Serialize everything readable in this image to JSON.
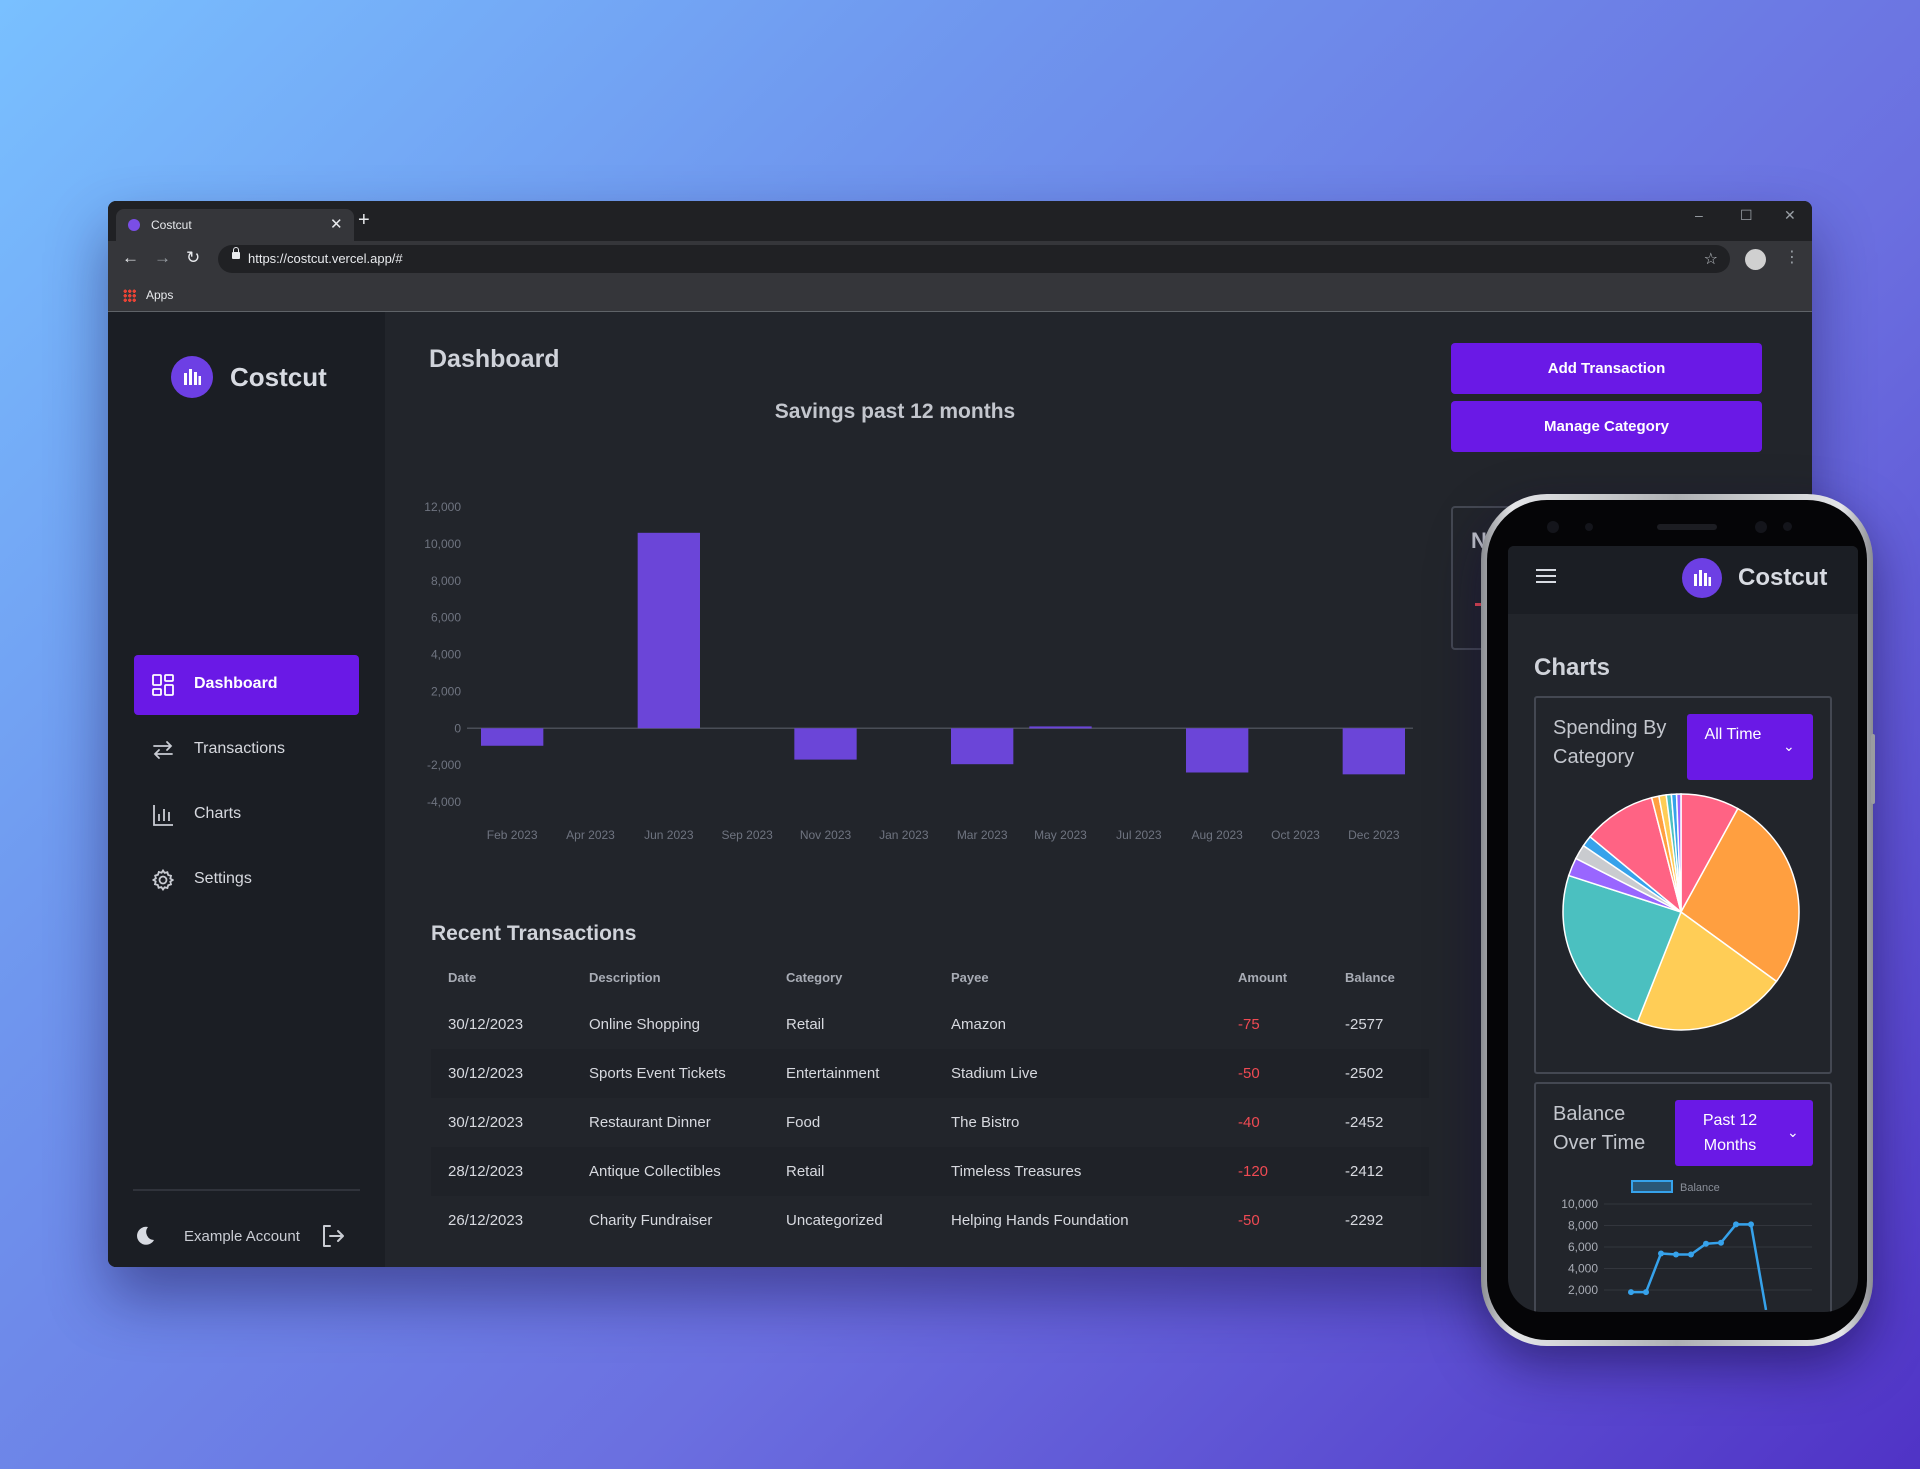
{
  "browser": {
    "tab_title": "Costcut",
    "tab_close": "✕",
    "new_tab": "+",
    "url": "https://costcut.vercel.app/#",
    "bookmark_apps": "Apps",
    "window_controls": [
      "–",
      "☐",
      "✕"
    ]
  },
  "app": {
    "name": "Costcut",
    "sidebar": {
      "items": [
        {
          "label": "Dashboard",
          "icon": "dashboard-icon",
          "active": true
        },
        {
          "label": "Transactions",
          "icon": "transactions-icon",
          "active": false
        },
        {
          "label": "Charts",
          "icon": "charts-icon",
          "active": false
        },
        {
          "label": "Settings",
          "icon": "gear-icon",
          "active": false
        }
      ],
      "account_name": "Example Account"
    },
    "page_title": "Dashboard",
    "actions": {
      "add_transaction": "Add Transaction",
      "manage_category": "Manage Category"
    },
    "hidden_card_letter": "N",
    "recent_title": "Recent Transactions",
    "table": {
      "headers": [
        "Date",
        "Description",
        "Category",
        "Payee",
        "Amount",
        "Balance"
      ],
      "rows": [
        {
          "date": "30/12/2023",
          "description": "Online Shopping",
          "category": "Retail",
          "payee": "Amazon",
          "amount": "-75",
          "balance": "-2577"
        },
        {
          "date": "30/12/2023",
          "description": "Sports Event Tickets",
          "category": "Entertainment",
          "payee": "Stadium Live",
          "amount": "-50",
          "balance": "-2502"
        },
        {
          "date": "30/12/2023",
          "description": "Restaurant Dinner",
          "category": "Food",
          "payee": "The Bistro",
          "amount": "-40",
          "balance": "-2452"
        },
        {
          "date": "28/12/2023",
          "description": "Antique Collectibles",
          "category": "Retail",
          "payee": "Timeless Treasures",
          "amount": "-120",
          "balance": "-2412"
        },
        {
          "date": "26/12/2023",
          "description": "Charity Fundraiser",
          "category": "Uncategorized",
          "payee": "Helping Hands Foundation",
          "amount": "-50",
          "balance": "-2292"
        }
      ]
    }
  },
  "phone": {
    "app_name": "Costcut",
    "heading": "Charts",
    "spending_card": {
      "title": "Spending By Category",
      "select_value": "All Time"
    },
    "balance_card": {
      "title": "Balance Over Time",
      "select_value": "Past 12 Months"
    }
  },
  "colors": {
    "accent": "#6a19e6",
    "bar": "#6b45d8",
    "negative": "#ef4a53",
    "background": "#22252b"
  },
  "chart_data": [
    {
      "type": "bar",
      "title": "Savings past 12 months",
      "categories": [
        "Jan 2023",
        "Feb 2023",
        "Mar 2023",
        "Apr 2023",
        "May 2023",
        "Jun 2023",
        "Jul 2023",
        "Aug 2023",
        "Sep 2023",
        "Oct 2023",
        "Nov 2023",
        "Dec 2023"
      ],
      "values": [
        -950,
        0,
        10600,
        0,
        -1700,
        0,
        -1950,
        100,
        0,
        -2400,
        0,
        -2500
      ],
      "x_tick_labels": [
        "Feb 2023",
        "Apr 2023",
        "Jun 2023",
        "Sep 2023",
        "Nov 2023",
        "Jan 2023",
        "Mar 2023",
        "May 2023",
        "Jul 2023",
        "Aug 2023",
        "Oct 2023",
        "Dec 2023"
      ],
      "y_tick_labels": [
        "12,000",
        "10,000",
        "8,000",
        "6,000",
        "4,000",
        "2,000",
        "0",
        "-2,000",
        "-4,000"
      ],
      "ylim": [
        -4000,
        12000
      ],
      "grid": false
    },
    {
      "type": "pie",
      "title": "Spending By Category",
      "slices": [
        {
          "value": 8,
          "color": "#ff6384"
        },
        {
          "value": 27,
          "color": "#ff9f40"
        },
        {
          "value": 21,
          "color": "#ffcd56"
        },
        {
          "value": 24,
          "color": "#4bc0c0"
        },
        {
          "value": 2.5,
          "color": "#9966ff"
        },
        {
          "value": 2,
          "color": "#c9cbcf"
        },
        {
          "value": 1.5,
          "color": "#36a2eb"
        },
        {
          "value": 10,
          "color": "#ff6384"
        },
        {
          "value": 1,
          "color": "#ff9f40"
        },
        {
          "value": 1,
          "color": "#ffcd56"
        },
        {
          "value": 0.7,
          "color": "#4bc0c0"
        },
        {
          "value": 0.7,
          "color": "#36a2eb"
        },
        {
          "value": 0.6,
          "color": "#9966ff"
        }
      ]
    },
    {
      "type": "line",
      "title": "Balance Over Time",
      "series": [
        {
          "name": "Balance",
          "values": [
            1800,
            1800,
            5400,
            5300,
            5300,
            6300,
            6400,
            8100,
            8100,
            -500
          ]
        }
      ],
      "y_tick_labels": [
        "10,000",
        "8,000",
        "6,000",
        "4,000",
        "2,000"
      ],
      "ylim": [
        0,
        10000
      ],
      "legend": "top"
    }
  ]
}
